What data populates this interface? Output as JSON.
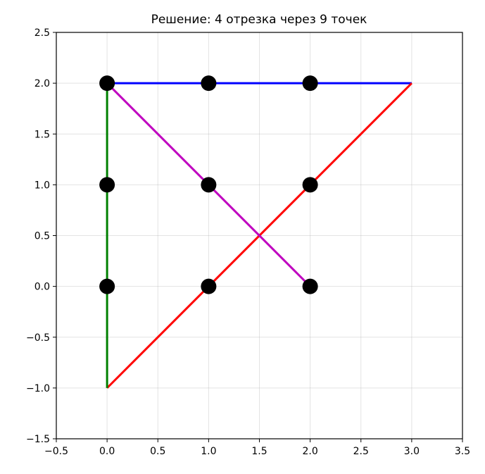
{
  "chart_data": {
    "type": "scatter",
    "title": "Решение: 4 отрезка через 9 точек",
    "xlabel": "",
    "ylabel": "",
    "xlim": [
      -0.5,
      3.5
    ],
    "ylim": [
      -1.5,
      2.5
    ],
    "xticks": [
      "−0.5",
      "0.0",
      "0.5",
      "1.0",
      "1.5",
      "2.0",
      "2.5",
      "3.0",
      "3.5"
    ],
    "yticks": [
      "−1.5",
      "−1.0",
      "−0.5",
      "0.0",
      "0.5",
      "1.0",
      "1.5",
      "2.0",
      "2.5"
    ],
    "xtick_values": [
      -0.5,
      0.0,
      0.5,
      1.0,
      1.5,
      2.0,
      2.5,
      3.0,
      3.5
    ],
    "ytick_values": [
      -1.5,
      -1.0,
      -0.5,
      0.0,
      0.5,
      1.0,
      1.5,
      2.0,
      2.5
    ],
    "grid": true,
    "points": [
      {
        "x": 0,
        "y": 0
      },
      {
        "x": 1,
        "y": 0
      },
      {
        "x": 2,
        "y": 0
      },
      {
        "x": 0,
        "y": 1
      },
      {
        "x": 1,
        "y": 1
      },
      {
        "x": 2,
        "y": 1
      },
      {
        "x": 0,
        "y": 2
      },
      {
        "x": 1,
        "y": 2
      },
      {
        "x": 2,
        "y": 2
      }
    ],
    "point_color": "#000000",
    "segments": [
      {
        "from": [
          0,
          2
        ],
        "to": [
          3,
          2
        ],
        "color": "#0000ff"
      },
      {
        "from": [
          3,
          2
        ],
        "to": [
          0,
          -1
        ],
        "color": "#ff0000"
      },
      {
        "from": [
          0,
          -1
        ],
        "to": [
          0,
          2
        ],
        "color": "#008000"
      },
      {
        "from": [
          0,
          2
        ],
        "to": [
          2,
          0
        ],
        "color": "#bf00bf"
      }
    ]
  }
}
